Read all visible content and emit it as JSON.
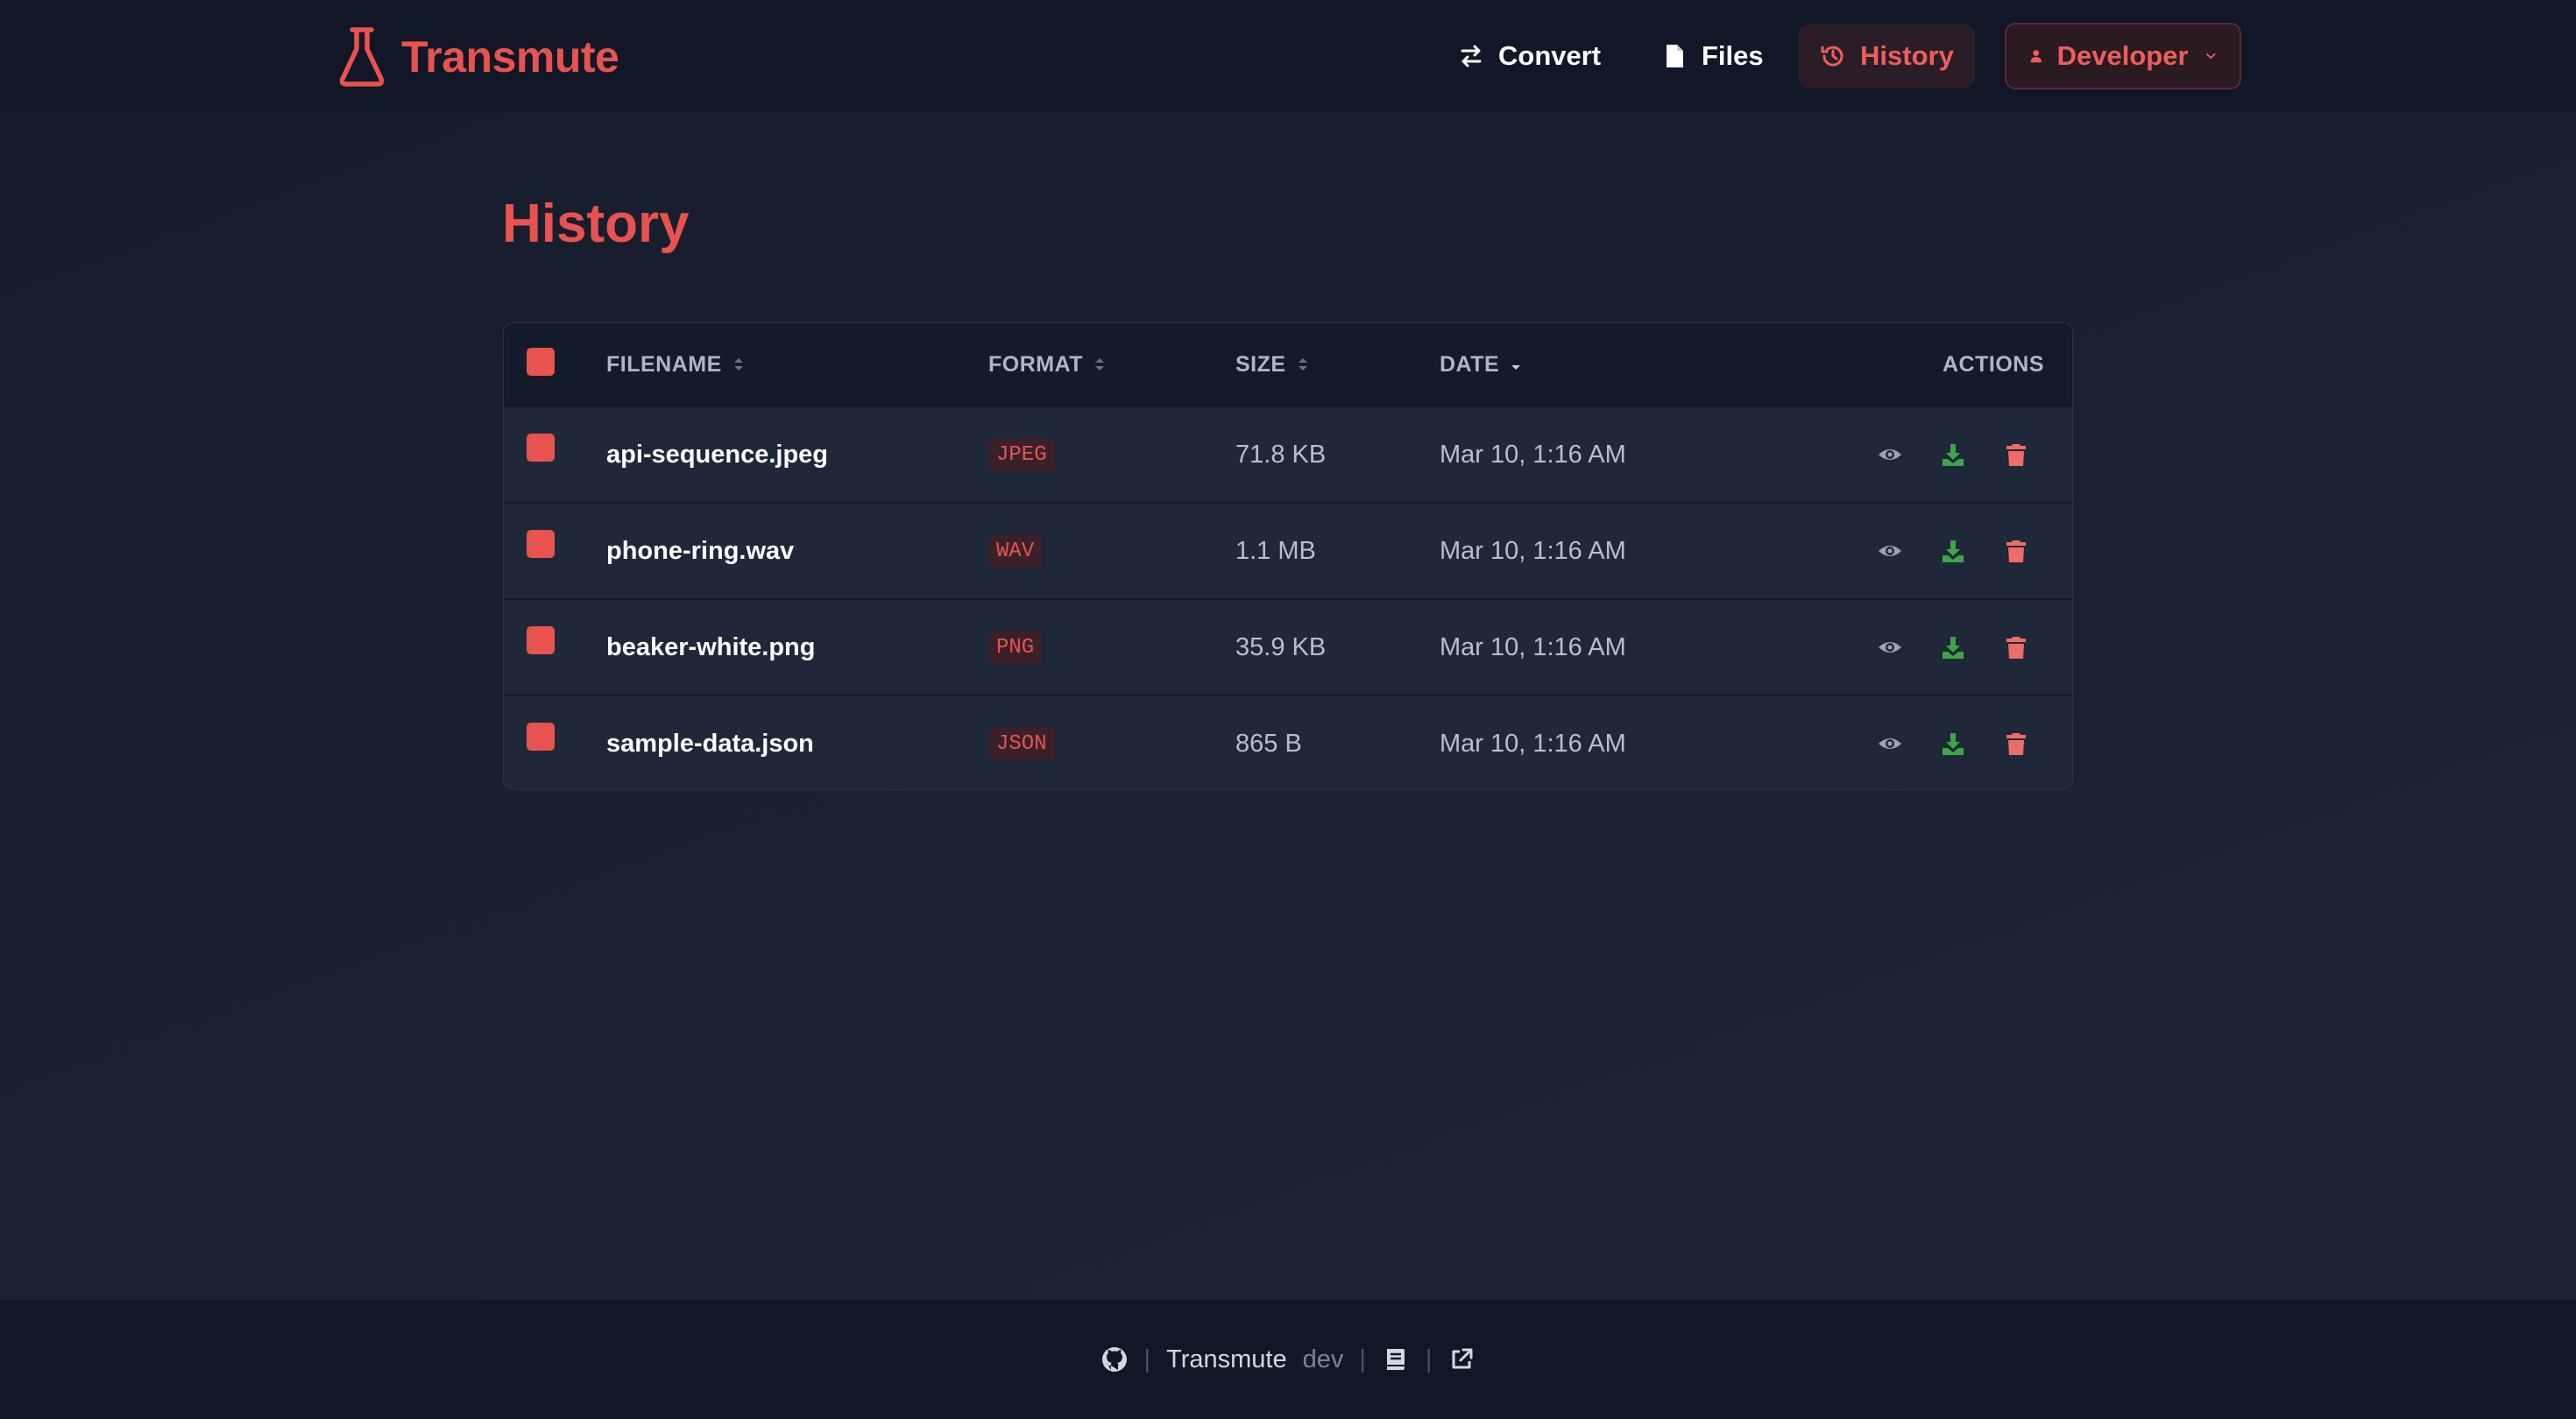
{
  "app": {
    "name": "Transmute"
  },
  "nav": {
    "convert": "Convert",
    "files": "Files",
    "history": "History",
    "user": "Developer"
  },
  "page": {
    "title": "History"
  },
  "table": {
    "headers": {
      "filename": "FILENAME",
      "format": "FORMAT",
      "size": "SIZE",
      "date": "DATE",
      "actions": "ACTIONS"
    },
    "sort": {
      "column": "date",
      "direction": "desc"
    },
    "rows": [
      {
        "filename": "api-sequence.jpeg",
        "format": "JPEG",
        "size": "71.8 KB",
        "date": "Mar 10, 1:16 AM"
      },
      {
        "filename": "phone-ring.wav",
        "format": "WAV",
        "size": "1.1 MB",
        "date": "Mar 10, 1:16 AM"
      },
      {
        "filename": "beaker-white.png",
        "format": "PNG",
        "size": "35.9 KB",
        "date": "Mar 10, 1:16 AM"
      },
      {
        "filename": "sample-data.json",
        "format": "JSON",
        "size": "865 B",
        "date": "Mar 10, 1:16 AM"
      }
    ]
  },
  "footer": {
    "name": "Transmute",
    "env": "dev",
    "sep1": "|",
    "sep2": "|",
    "sep3": "|"
  },
  "icons": {
    "brand": "flask-icon",
    "convert": "arrows-exchange-icon",
    "files": "file-icon",
    "history": "history-clock-icon",
    "user": "user-icon",
    "dropdown": "chevron-down-icon",
    "view": "eye-icon",
    "download": "download-icon",
    "delete": "trash-icon",
    "github": "github-icon",
    "docs": "book-icon",
    "external": "external-link-icon"
  },
  "colors": {
    "accent": "#e8534f",
    "download": "#3fa54a",
    "background": "#161c2c",
    "navbar": "#111726"
  }
}
